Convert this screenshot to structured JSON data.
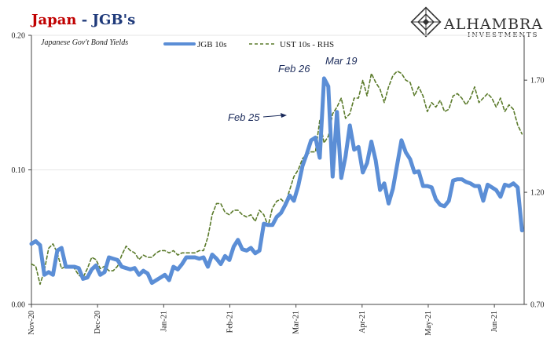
{
  "header": {
    "title_part1": "Japan",
    "title_sep": " - ",
    "title_part2": "JGB's",
    "subtitle": "Japanese Gov't Bond Yields"
  },
  "brand": {
    "name": "ALHAMBRA",
    "sub": "INVESTMENTS",
    "logo_icon": "diamond-lattice-icon"
  },
  "legend": {
    "series1": "JGB 10s",
    "series2": "UST 10s - RHS"
  },
  "colors": {
    "jgb": "#5b8ed6",
    "ust": "#5a7a2a",
    "title_red": "#c00000",
    "title_blue": "#1f3a7a"
  },
  "annotations": {
    "feb25": "Feb 25",
    "feb26": "Feb 26",
    "mar19": "Mar 19"
  },
  "chart_data": {
    "type": "line",
    "title": "Japan - JGB's",
    "subtitle": "Japanese Gov't Bond Yields",
    "x_tick_labels": [
      "Nov-20",
      "Dec-20",
      "Jan-21",
      "Feb-21",
      "Mar-21",
      "Apr-21",
      "May-21",
      "Jun-21"
    ],
    "y_left": {
      "ticks": [
        "0.00",
        "0.10",
        "0.20"
      ],
      "range": [
        0,
        0.2
      ]
    },
    "y_right": {
      "ticks": [
        "0.70",
        "1.20",
        "1.70"
      ],
      "range": [
        0.7,
        1.9
      ]
    },
    "x_range": [
      0,
      229
    ],
    "grid": "horizontal",
    "legend_position": "top-center",
    "series": [
      {
        "name": "JGB 10s",
        "axis": "left",
        "points": [
          [
            0,
            0.045
          ],
          [
            2,
            0.047
          ],
          [
            4,
            0.044
          ],
          [
            6,
            0.022
          ],
          [
            8,
            0.024
          ],
          [
            10,
            0.022
          ],
          [
            12,
            0.04
          ],
          [
            14,
            0.042
          ],
          [
            16,
            0.028
          ],
          [
            18,
            0.028
          ],
          [
            20,
            0.028
          ],
          [
            22,
            0.027
          ],
          [
            24,
            0.019
          ],
          [
            26,
            0.02
          ],
          [
            28,
            0.026
          ],
          [
            30,
            0.029
          ],
          [
            32,
            0.022
          ],
          [
            34,
            0.024
          ],
          [
            36,
            0.035
          ],
          [
            38,
            0.034
          ],
          [
            40,
            0.033
          ],
          [
            42,
            0.028
          ],
          [
            44,
            0.027
          ],
          [
            46,
            0.026
          ],
          [
            48,
            0.027
          ],
          [
            50,
            0.022
          ],
          [
            52,
            0.025
          ],
          [
            54,
            0.023
          ],
          [
            56,
            0.016
          ],
          [
            58,
            0.018
          ],
          [
            60,
            0.02
          ],
          [
            62,
            0.022
          ],
          [
            64,
            0.018
          ],
          [
            66,
            0.028
          ],
          [
            68,
            0.026
          ],
          [
            70,
            0.03
          ],
          [
            72,
            0.035
          ],
          [
            74,
            0.035
          ],
          [
            76,
            0.035
          ],
          [
            78,
            0.034
          ],
          [
            80,
            0.035
          ],
          [
            82,
            0.028
          ],
          [
            84,
            0.037
          ],
          [
            86,
            0.034
          ],
          [
            88,
            0.03
          ],
          [
            90,
            0.036
          ],
          [
            92,
            0.033
          ],
          [
            94,
            0.043
          ],
          [
            96,
            0.048
          ],
          [
            98,
            0.041
          ],
          [
            100,
            0.04
          ],
          [
            102,
            0.042
          ],
          [
            104,
            0.038
          ],
          [
            106,
            0.04
          ],
          [
            108,
            0.06
          ],
          [
            110,
            0.059
          ],
          [
            112,
            0.059
          ],
          [
            114,
            0.065
          ],
          [
            116,
            0.068
          ],
          [
            118,
            0.074
          ],
          [
            120,
            0.081
          ],
          [
            122,
            0.077
          ],
          [
            124,
            0.088
          ],
          [
            126,
            0.103
          ],
          [
            128,
            0.112
          ],
          [
            130,
            0.122
          ],
          [
            132,
            0.124
          ],
          [
            134,
            0.109
          ],
          [
            136,
            0.168
          ],
          [
            138,
            0.162
          ],
          [
            140,
            0.095
          ],
          [
            142,
            0.143
          ],
          [
            144,
            0.094
          ],
          [
            146,
            0.11
          ],
          [
            148,
            0.133
          ],
          [
            150,
            0.115
          ],
          [
            152,
            0.117
          ],
          [
            154,
            0.098
          ],
          [
            156,
            0.105
          ],
          [
            158,
            0.121
          ],
          [
            160,
            0.107
          ],
          [
            162,
            0.085
          ],
          [
            164,
            0.09
          ],
          [
            166,
            0.075
          ],
          [
            168,
            0.086
          ],
          [
            170,
            0.104
          ],
          [
            172,
            0.122
          ],
          [
            174,
            0.113
          ],
          [
            176,
            0.108
          ],
          [
            178,
            0.098
          ],
          [
            180,
            0.099
          ],
          [
            182,
            0.088
          ],
          [
            184,
            0.088
          ],
          [
            186,
            0.087
          ],
          [
            188,
            0.078
          ],
          [
            190,
            0.074
          ],
          [
            192,
            0.073
          ],
          [
            194,
            0.077
          ],
          [
            196,
            0.092
          ],
          [
            198,
            0.093
          ],
          [
            200,
            0.093
          ],
          [
            202,
            0.091
          ],
          [
            204,
            0.09
          ],
          [
            206,
            0.088
          ],
          [
            208,
            0.088
          ],
          [
            210,
            0.077
          ],
          [
            212,
            0.089
          ],
          [
            214,
            0.087
          ],
          [
            216,
            0.085
          ],
          [
            218,
            0.08
          ],
          [
            220,
            0.089
          ],
          [
            222,
            0.088
          ],
          [
            224,
            0.09
          ],
          [
            226,
            0.087
          ],
          [
            228,
            0.055
          ]
        ]
      },
      {
        "name": "UST 10s - RHS",
        "axis": "right",
        "points": [
          [
            0,
            0.88
          ],
          [
            2,
            0.87
          ],
          [
            4,
            0.79
          ],
          [
            6,
            0.85
          ],
          [
            8,
            0.95
          ],
          [
            10,
            0.97
          ],
          [
            12,
            0.93
          ],
          [
            14,
            0.86
          ],
          [
            16,
            0.87
          ],
          [
            18,
            0.87
          ],
          [
            20,
            0.86
          ],
          [
            22,
            0.83
          ],
          [
            24,
            0.82
          ],
          [
            26,
            0.86
          ],
          [
            28,
            0.91
          ],
          [
            30,
            0.9
          ],
          [
            32,
            0.86
          ],
          [
            34,
            0.87
          ],
          [
            36,
            0.85
          ],
          [
            38,
            0.85
          ],
          [
            40,
            0.87
          ],
          [
            42,
            0.92
          ],
          [
            44,
            0.96
          ],
          [
            46,
            0.94
          ],
          [
            48,
            0.93
          ],
          [
            50,
            0.9
          ],
          [
            52,
            0.92
          ],
          [
            54,
            0.91
          ],
          [
            56,
            0.91
          ],
          [
            58,
            0.93
          ],
          [
            60,
            0.94
          ],
          [
            62,
            0.94
          ],
          [
            64,
            0.93
          ],
          [
            66,
            0.94
          ],
          [
            68,
            0.92
          ],
          [
            70,
            0.93
          ],
          [
            72,
            0.93
          ],
          [
            74,
            0.93
          ],
          [
            76,
            0.93
          ],
          [
            78,
            0.94
          ],
          [
            80,
            0.94
          ],
          [
            82,
            1.0
          ],
          [
            84,
            1.1
          ],
          [
            86,
            1.15
          ],
          [
            88,
            1.15
          ],
          [
            90,
            1.11
          ],
          [
            92,
            1.1
          ],
          [
            94,
            1.12
          ],
          [
            96,
            1.12
          ],
          [
            98,
            1.1
          ],
          [
            100,
            1.09
          ],
          [
            102,
            1.1
          ],
          [
            104,
            1.07
          ],
          [
            106,
            1.12
          ],
          [
            108,
            1.1
          ],
          [
            110,
            1.05
          ],
          [
            112,
            1.13
          ],
          [
            114,
            1.16
          ],
          [
            116,
            1.17
          ],
          [
            118,
            1.15
          ],
          [
            120,
            1.21
          ],
          [
            122,
            1.27
          ],
          [
            124,
            1.3
          ],
          [
            126,
            1.35
          ],
          [
            128,
            1.37
          ],
          [
            130,
            1.38
          ],
          [
            132,
            1.38
          ],
          [
            134,
            1.52
          ],
          [
            136,
            1.42
          ],
          [
            138,
            1.45
          ],
          [
            140,
            1.55
          ],
          [
            142,
            1.58
          ],
          [
            144,
            1.62
          ],
          [
            146,
            1.53
          ],
          [
            148,
            1.55
          ],
          [
            150,
            1.62
          ],
          [
            152,
            1.62
          ],
          [
            154,
            1.7
          ],
          [
            156,
            1.63
          ],
          [
            158,
            1.73
          ],
          [
            160,
            1.69
          ],
          [
            162,
            1.66
          ],
          [
            164,
            1.6
          ],
          [
            166,
            1.67
          ],
          [
            168,
            1.72
          ],
          [
            170,
            1.74
          ],
          [
            172,
            1.73
          ],
          [
            174,
            1.7
          ],
          [
            176,
            1.69
          ],
          [
            178,
            1.63
          ],
          [
            180,
            1.67
          ],
          [
            182,
            1.63
          ],
          [
            184,
            1.56
          ],
          [
            186,
            1.6
          ],
          [
            188,
            1.58
          ],
          [
            190,
            1.61
          ],
          [
            192,
            1.56
          ],
          [
            194,
            1.57
          ],
          [
            196,
            1.63
          ],
          [
            198,
            1.64
          ],
          [
            200,
            1.62
          ],
          [
            202,
            1.59
          ],
          [
            204,
            1.62
          ],
          [
            206,
            1.67
          ],
          [
            208,
            1.6
          ],
          [
            210,
            1.62
          ],
          [
            212,
            1.64
          ],
          [
            214,
            1.62
          ],
          [
            216,
            1.58
          ],
          [
            218,
            1.62
          ],
          [
            220,
            1.56
          ],
          [
            222,
            1.59
          ],
          [
            224,
            1.57
          ],
          [
            226,
            1.5
          ],
          [
            228,
            1.46
          ]
        ]
      }
    ]
  }
}
